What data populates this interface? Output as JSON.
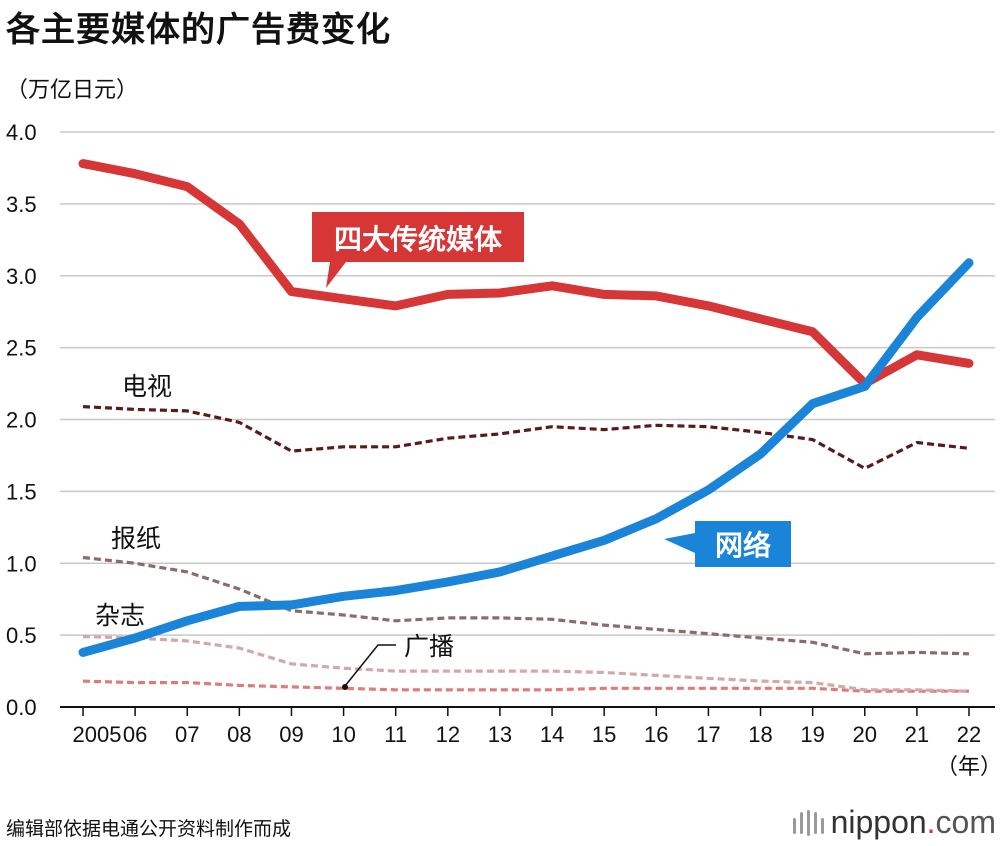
{
  "title": "各主要媒体的广告费变化",
  "unit": "（万亿日元）",
  "source": "编辑部依据电通公开资料制作而成",
  "logo": {
    "name": "nippon",
    "dot": ".",
    "tld": "com"
  },
  "chart_data": {
    "type": "line",
    "ylim": [
      0,
      4.0
    ],
    "yticks": [
      "0.0",
      "0.5",
      "1.0",
      "1.5",
      "2.0",
      "2.5",
      "3.0",
      "3.5",
      "4.0"
    ],
    "categories": [
      "2005",
      "06",
      "07",
      "08",
      "09",
      "10",
      "11",
      "12",
      "13",
      "14",
      "15",
      "16",
      "17",
      "18",
      "19",
      "20",
      "21",
      "22"
    ],
    "x_unit": "（年）",
    "series": [
      {
        "name": "四大传统媒体",
        "style": "solid",
        "color": "#d63636",
        "label_bg": "#d63636",
        "values": [
          3.78,
          3.71,
          3.62,
          3.36,
          2.89,
          2.84,
          2.79,
          2.87,
          2.88,
          2.93,
          2.87,
          2.86,
          2.79,
          2.7,
          2.61,
          2.25,
          2.45,
          2.39
        ]
      },
      {
        "name": "网络",
        "style": "solid",
        "color": "#1a84d8",
        "label_bg": "#1a84d8",
        "values": [
          0.38,
          0.48,
          0.6,
          0.7,
          0.71,
          0.77,
          0.81,
          0.87,
          0.94,
          1.05,
          1.16,
          1.31,
          1.51,
          1.76,
          2.11,
          2.23,
          2.71,
          3.09
        ]
      },
      {
        "name": "电视",
        "style": "dashed",
        "color": "#5a1a1a",
        "values": [
          2.09,
          2.07,
          2.06,
          1.98,
          1.78,
          1.81,
          1.81,
          1.87,
          1.9,
          1.95,
          1.93,
          1.96,
          1.95,
          1.91,
          1.86,
          1.66,
          1.84,
          1.8
        ]
      },
      {
        "name": "报纸",
        "style": "dashed",
        "color": "#8d6b6b",
        "values": [
          1.04,
          1.0,
          0.94,
          0.82,
          0.67,
          0.64,
          0.6,
          0.62,
          0.62,
          0.61,
          0.57,
          0.54,
          0.51,
          0.48,
          0.45,
          0.37,
          0.38,
          0.37
        ]
      },
      {
        "name": "杂志",
        "style": "dashed",
        "color": "#d3a8a8",
        "values": [
          0.49,
          0.48,
          0.46,
          0.41,
          0.3,
          0.27,
          0.25,
          0.25,
          0.25,
          0.25,
          0.24,
          0.22,
          0.2,
          0.18,
          0.17,
          0.12,
          0.12,
          0.11
        ]
      },
      {
        "name": "广播",
        "style": "dashed",
        "color": "#e07b7b",
        "values": [
          0.18,
          0.17,
          0.17,
          0.15,
          0.14,
          0.13,
          0.12,
          0.12,
          0.12,
          0.12,
          0.13,
          0.13,
          0.13,
          0.13,
          0.13,
          0.11,
          0.11,
          0.11
        ]
      }
    ]
  }
}
